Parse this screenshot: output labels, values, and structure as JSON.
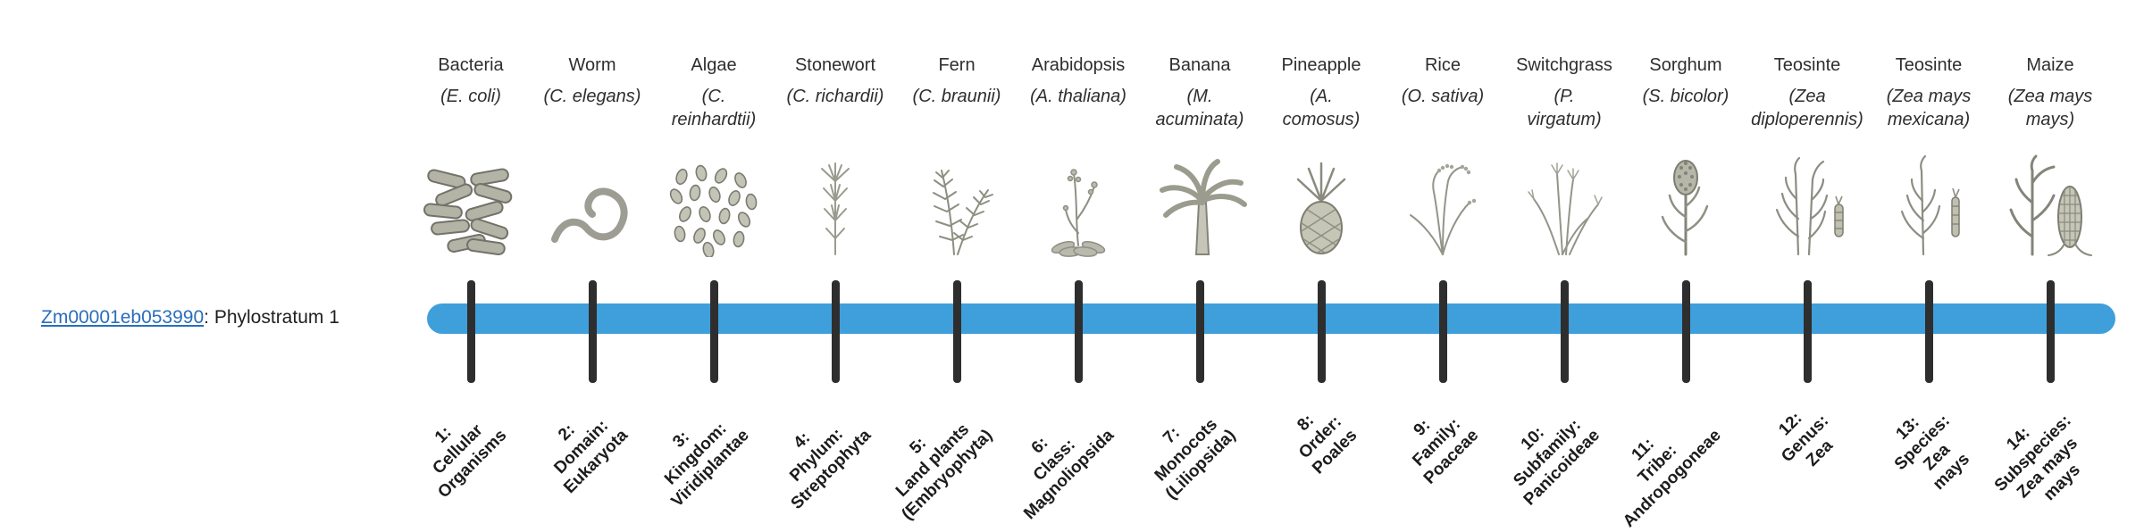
{
  "gene": {
    "id": "Zm00001eb053990",
    "label_suffix": ": Phylostratum 1"
  },
  "timeline": {
    "bar_color": "#3f9fdb",
    "tick_color": "#2e2e2e",
    "link_color": "#2a6ebb"
  },
  "stages": [
    {
      "index": 1,
      "common_name": "Bacteria",
      "scientific_name": "(E. coli)",
      "icon": "bacteria-icon",
      "stratum_label": "1:\nCellular\nOrganisms"
    },
    {
      "index": 2,
      "common_name": "Worm",
      "scientific_name": "(C. elegans)",
      "icon": "worm-icon",
      "stratum_label": "2:\nDomain:\nEukaryota"
    },
    {
      "index": 3,
      "common_name": "Algae",
      "scientific_name": "(C.\nreinhardtii)",
      "icon": "algae-icon",
      "stratum_label": "3:\nKingdom:\nViridiplantae"
    },
    {
      "index": 4,
      "common_name": "Stonewort",
      "scientific_name": "(C. richardii)",
      "icon": "stonewort-icon",
      "stratum_label": "4:\nPhylum:\nStreptophyta"
    },
    {
      "index": 5,
      "common_name": "Fern",
      "scientific_name": "(C. braunii)",
      "icon": "fern-icon",
      "stratum_label": "5:\nLand plants\n(Embryophyta)"
    },
    {
      "index": 6,
      "common_name": "Arabidopsis",
      "scientific_name": "(A. thaliana)",
      "icon": "arabidopsis-icon",
      "stratum_label": "6:\nClass:\nMagnoliopsida"
    },
    {
      "index": 7,
      "common_name": "Banana",
      "scientific_name": "(M.\nacuminata)",
      "icon": "banana-icon",
      "stratum_label": "7:\nMonocots\n(Liliopsida)"
    },
    {
      "index": 8,
      "common_name": "Pineapple",
      "scientific_name": "(A.\ncomosus)",
      "icon": "pineapple-icon",
      "stratum_label": "8:\nOrder:\nPoales"
    },
    {
      "index": 9,
      "common_name": "Rice",
      "scientific_name": "(O. sativa)",
      "icon": "rice-icon",
      "stratum_label": "9:\nFamily:\nPoaceae"
    },
    {
      "index": 10,
      "common_name": "Switchgrass",
      "scientific_name": "(P.\nvirgatum)",
      "icon": "switchgrass-icon",
      "stratum_label": "10:\nSubfamily:\nPanicoideae"
    },
    {
      "index": 11,
      "common_name": "Sorghum",
      "scientific_name": "(S. bicolor)",
      "icon": "sorghum-icon",
      "stratum_label": "11:\nTribe:\nAndropogoneae"
    },
    {
      "index": 12,
      "common_name": "Teosinte",
      "scientific_name": "(Zea\ndiploperennis)",
      "icon": "teosinte-diploperennis-icon",
      "stratum_label": "12:\nGenus:\nZea"
    },
    {
      "index": 13,
      "common_name": "Teosinte",
      "scientific_name": "(Zea mays\nmexicana)",
      "icon": "teosinte-mexicana-icon",
      "stratum_label": "13:\nSpecies:\nZea\nmays"
    },
    {
      "index": 14,
      "common_name": "Maize",
      "scientific_name": "(Zea mays\nmays)",
      "icon": "maize-icon",
      "stratum_label": "14:\nSubspecies:\nZea mays\nmays"
    }
  ]
}
